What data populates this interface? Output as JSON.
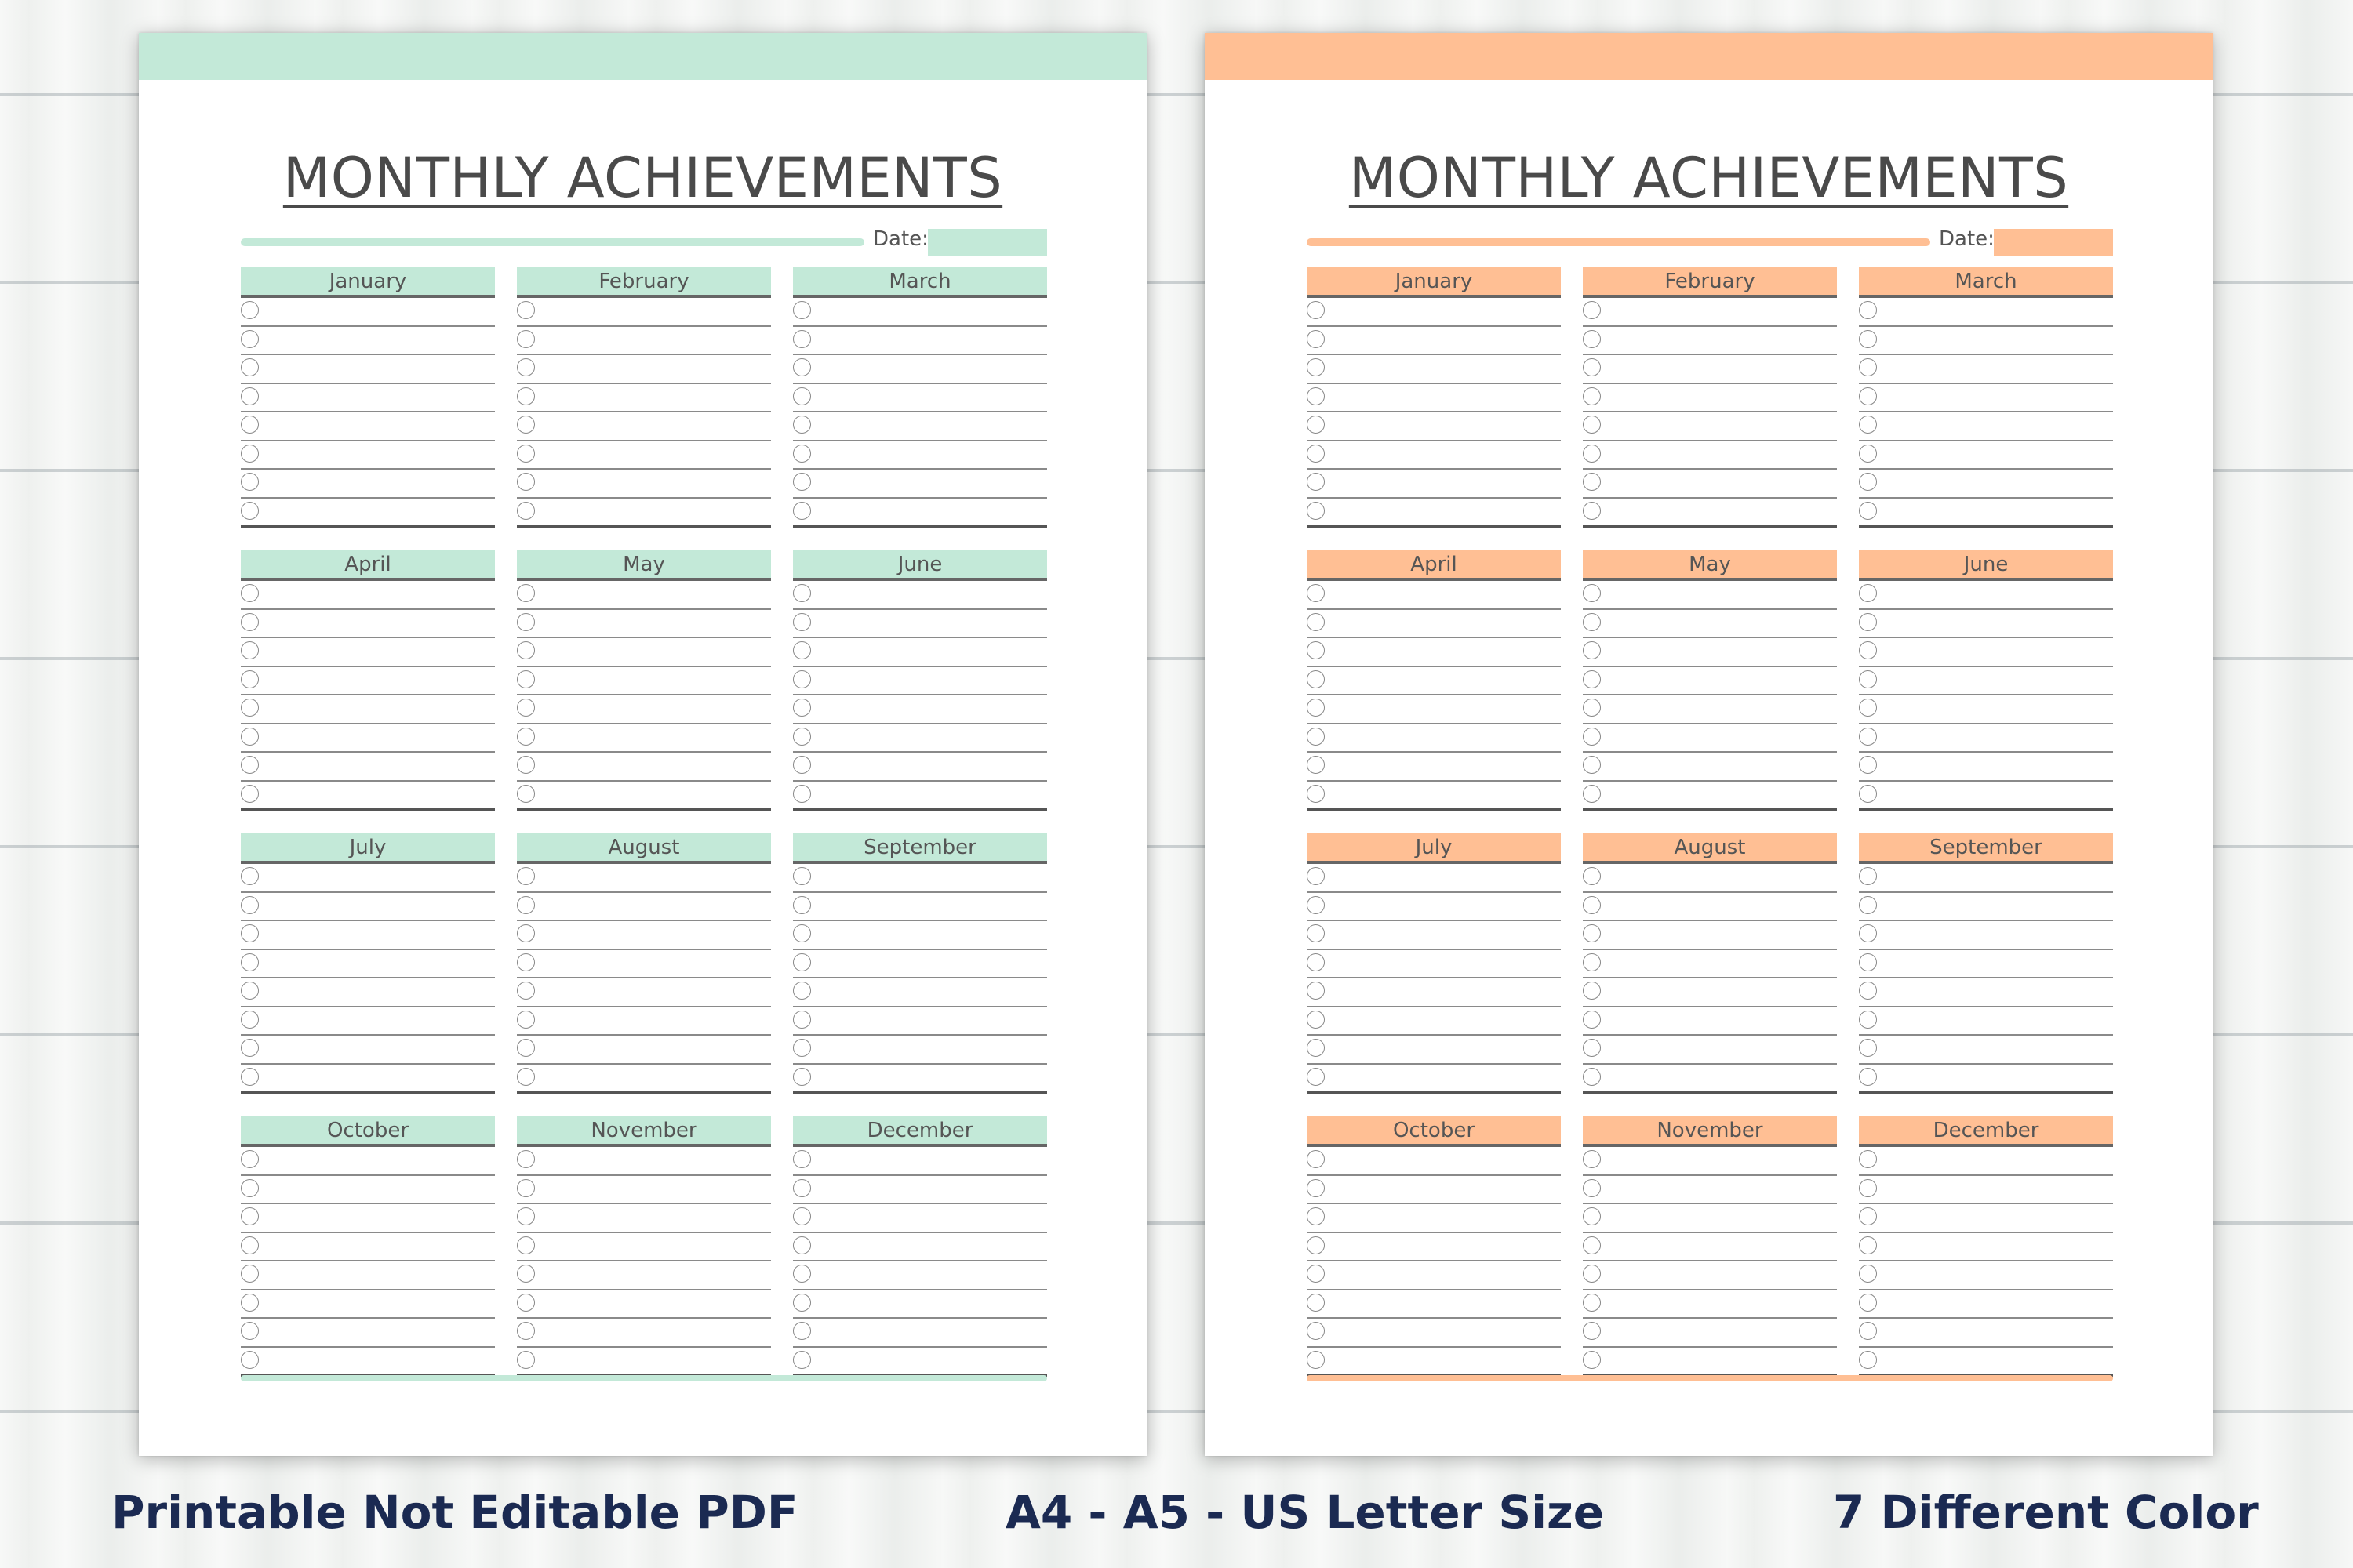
{
  "pages": [
    {
      "accent": "#c3e9d8",
      "title": "MONTHLY ACHIEVEMENTS",
      "date_label": "Date:",
      "months": [
        "January",
        "February",
        "March",
        "April",
        "May",
        "June",
        "July",
        "August",
        "September",
        "October",
        "November",
        "December"
      ]
    },
    {
      "accent": "#ffbf94",
      "title": "MONTHLY ACHIEVEMENTS",
      "date_label": "Date:",
      "months": [
        "January",
        "February",
        "March",
        "April",
        "May",
        "June",
        "July",
        "August",
        "September",
        "October",
        "November",
        "December"
      ]
    }
  ],
  "captions": {
    "left": "Printable Not Editable PDF",
    "center": "A4 - A5 - US Letter Size",
    "right": "7 Different Color"
  }
}
